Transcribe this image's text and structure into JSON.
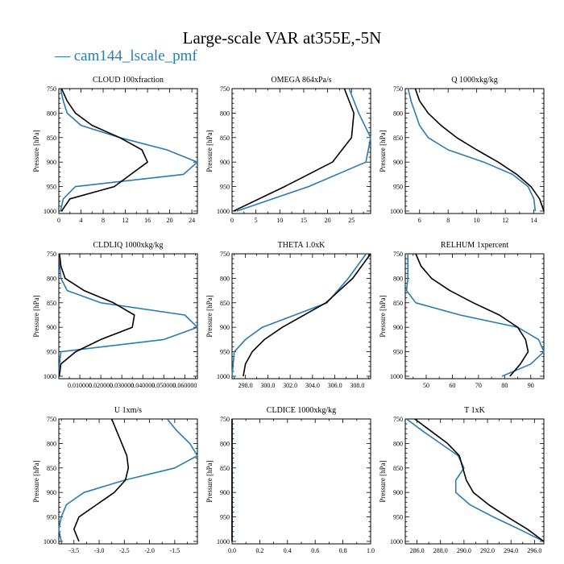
{
  "figure": {
    "title": "Large-scale VAR at355E,-5N",
    "legend_label": "— cam144_lscale_pmf",
    "colors": {
      "series_a": "#2a7bb0",
      "series_b": "#000000"
    }
  },
  "chart_data": [
    {
      "type": "line",
      "title": "CLOUD  100xfraction",
      "ylabel": "Pressure [hPa]",
      "xlim": [
        0,
        25
      ],
      "ylim": [
        750,
        1005
      ],
      "xticks": [
        0,
        4,
        8,
        12,
        16,
        20,
        24
      ],
      "xticklabels": [
        "0",
        "4",
        "8",
        "12",
        "16",
        "20",
        "24"
      ],
      "yticks": [
        750,
        800,
        850,
        900,
        950,
        1000
      ],
      "series": [
        {
          "p": [
            750,
            775,
            800,
            825,
            850,
            875,
            900,
            925,
            950,
            975,
            1000
          ],
          "x": [
            0.3,
            0.8,
            1.5,
            4,
            11,
            19.5,
            25,
            22.5,
            3,
            0.8,
            0.3
          ]
        },
        {
          "p": [
            750,
            775,
            800,
            825,
            850,
            875,
            900,
            925,
            950,
            975,
            1000
          ],
          "x": [
            0.5,
            1.5,
            3,
            6,
            11,
            15,
            16,
            13,
            10,
            2,
            0.5
          ]
        }
      ]
    },
    {
      "type": "line",
      "title": "OMEGA  864xPa/s",
      "ylabel": "Pressure [hPa]",
      "xlim": [
        0,
        29
      ],
      "ylim": [
        750,
        1005
      ],
      "xticks": [
        0,
        5,
        10,
        15,
        20,
        25
      ],
      "xticklabels": [
        "0",
        "5",
        "10",
        "15",
        "20",
        "25"
      ],
      "yticks": [
        750,
        800,
        850,
        900,
        950,
        1000
      ],
      "series": [
        {
          "p": [
            750,
            800,
            850,
            900,
            950,
            1000
          ],
          "x": [
            24.5,
            26.5,
            29,
            28,
            16,
            1
          ]
        },
        {
          "p": [
            750,
            800,
            850,
            900,
            950,
            1000
          ],
          "x": [
            23.5,
            25.5,
            25,
            21,
            11,
            0.3
          ]
        }
      ]
    },
    {
      "type": "line",
      "title": "Q  1000xkg/kg",
      "ylabel": "Pressure [hPa]",
      "xlim": [
        5,
        14.7
      ],
      "ylim": [
        750,
        1005
      ],
      "xticks": [
        6,
        8,
        10,
        12,
        14
      ],
      "xticklabels": [
        "6",
        "8",
        "10",
        "12",
        "14"
      ],
      "yticks": [
        750,
        800,
        850,
        900,
        950,
        1000
      ],
      "series": [
        {
          "p": [
            750,
            775,
            800,
            825,
            850,
            875,
            900,
            925,
            950,
            975,
            1000
          ],
          "x": [
            5.2,
            5.4,
            5.7,
            6,
            6.6,
            8,
            10.5,
            12.5,
            13.6,
            14,
            14.1
          ]
        },
        {
          "p": [
            750,
            775,
            800,
            825,
            850,
            875,
            900,
            925,
            950,
            975,
            1000
          ],
          "x": [
            5.7,
            6,
            6.6,
            7.5,
            8.6,
            10,
            11.5,
            12.8,
            13.8,
            14.4,
            14.7
          ]
        }
      ]
    },
    {
      "type": "line",
      "title": "CLDLIQ  1000xkg/kg",
      "ylabel": "Pressure [hPa]",
      "xlim": [
        0,
        0.066
      ],
      "ylim": [
        750,
        1005
      ],
      "xticks": [
        0.01,
        0.02,
        0.03,
        0.04,
        0.05,
        0.06
      ],
      "xticklabels": [
        "0.010000",
        "0.020000",
        "0.030000",
        "0.040000",
        "0.050000",
        "0.060000"
      ],
      "yticks": [
        750,
        800,
        850,
        900,
        950,
        1000
      ],
      "series": [
        {
          "p": [
            750,
            775,
            800,
            825,
            850,
            875,
            900,
            925,
            950,
            975,
            1000
          ],
          "x": [
            0.0002,
            0.0005,
            0.001,
            0.004,
            0.02,
            0.06,
            0.066,
            0.05,
            0.001,
            0.0003,
            0.0001
          ]
        },
        {
          "p": [
            750,
            775,
            800,
            825,
            850,
            875,
            900,
            925,
            950,
            975,
            1000
          ],
          "x": [
            0.0003,
            0.001,
            0.003,
            0.012,
            0.026,
            0.036,
            0.035,
            0.02,
            0.008,
            0.001,
            0.0002
          ]
        }
      ]
    },
    {
      "type": "line",
      "title": "THETA  1.0xK",
      "ylabel": "Pressure [hPa]",
      "xlim": [
        296.8,
        309.2
      ],
      "ylim": [
        750,
        1005
      ],
      "xticks": [
        298,
        300,
        302,
        304,
        306,
        308
      ],
      "xticklabels": [
        "298.0",
        "300.0",
        "302.0",
        "304.0",
        "306.0",
        "308.0"
      ],
      "yticks": [
        750,
        800,
        850,
        900,
        950,
        1000
      ],
      "series": [
        {
          "p": [
            750,
            800,
            850,
            900,
            925,
            950,
            975,
            1000
          ],
          "x": [
            308.8,
            307.2,
            305.3,
            299.5,
            298,
            297,
            296.9,
            296.8
          ]
        },
        {
          "p": [
            750,
            800,
            850,
            900,
            925,
            950,
            975,
            1000
          ],
          "x": [
            309.2,
            307.6,
            305.2,
            301.3,
            299.7,
            298.6,
            298,
            297.8
          ]
        }
      ]
    },
    {
      "type": "line",
      "title": "RELHUM  1xpercent",
      "ylabel": "Pressure [hPa]",
      "xlim": [
        42,
        95
      ],
      "ylim": [
        750,
        1005
      ],
      "xticks": [
        50,
        60,
        70,
        80,
        90
      ],
      "xticklabels": [
        "50",
        "60",
        "70",
        "80",
        "90"
      ],
      "yticks": [
        750,
        800,
        850,
        900,
        950,
        1000
      ],
      "series": [
        {
          "p": [
            750,
            775,
            800,
            825,
            850,
            875,
            900,
            925,
            950,
            975,
            1000
          ],
          "x": [
            43,
            43,
            43,
            42.5,
            46,
            63,
            85,
            93,
            95,
            90,
            79
          ]
        },
        {
          "p": [
            750,
            775,
            800,
            825,
            850,
            875,
            900,
            925,
            950,
            975,
            1000
          ],
          "x": [
            46,
            48,
            52,
            59,
            68,
            78,
            85,
            88,
            89,
            86,
            82
          ]
        }
      ]
    },
    {
      "type": "line",
      "title": "U  1xm/s",
      "ylabel": "Pressure [hPa]",
      "xlim": [
        -3.8,
        -1.05
      ],
      "ylim": [
        750,
        1005
      ],
      "xticks": [
        -3.5,
        -3.0,
        -2.5,
        -2.0,
        -1.5
      ],
      "xticklabels": [
        "-3.5",
        "-3.0",
        "-2.5",
        "-2.0",
        "-1.5"
      ],
      "yticks": [
        750,
        800,
        850,
        900,
        950,
        1000
      ],
      "series": [
        {
          "p": [
            750,
            775,
            800,
            825,
            850,
            875,
            900,
            925,
            950,
            975,
            1000
          ],
          "x": [
            -1.65,
            -1.45,
            -1.2,
            -1.05,
            -1.5,
            -2.5,
            -3.3,
            -3.65,
            -3.75,
            -3.8,
            -3.75
          ]
        },
        {
          "p": [
            750,
            775,
            800,
            825,
            850,
            875,
            900,
            925,
            950,
            975,
            1000
          ],
          "x": [
            -2.75,
            -2.65,
            -2.55,
            -2.45,
            -2.42,
            -2.48,
            -2.7,
            -3.05,
            -3.4,
            -3.5,
            -3.4
          ]
        }
      ]
    },
    {
      "type": "line",
      "title": "CLDICE  1000xkg/kg",
      "ylabel": "Pressure [hPa]",
      "xlim": [
        0,
        1
      ],
      "ylim": [
        750,
        1005
      ],
      "xticks": [
        0,
        0.2,
        0.4,
        0.6,
        0.8,
        1.0
      ],
      "xticklabels": [
        "0.0",
        "0.2",
        "0.4",
        "0.6",
        "0.8",
        "1.0"
      ],
      "yticks": [
        750,
        800,
        850,
        900,
        950,
        1000
      ],
      "series": [
        {
          "p": [
            750,
            1000
          ],
          "x": [
            0,
            0
          ]
        },
        {
          "p": [
            750,
            1000
          ],
          "x": [
            0,
            0
          ]
        }
      ]
    },
    {
      "type": "line",
      "title": "T  1xK",
      "ylabel": "Pressure [hPa]",
      "xlim": [
        285,
        296.8
      ],
      "ylim": [
        750,
        1005
      ],
      "xticks": [
        286,
        288,
        290,
        292,
        294,
        296
      ],
      "xticklabels": [
        "286.0",
        "288.0",
        "290.0",
        "292.0",
        "294.0",
        "296.0"
      ],
      "yticks": [
        750,
        800,
        850,
        900,
        950,
        1000
      ],
      "series": [
        {
          "p": [
            750,
            775,
            800,
            825,
            850,
            875,
            900,
            925,
            950,
            975,
            1000
          ],
          "x": [
            285.1,
            286.5,
            288,
            289.5,
            290,
            289.3,
            289.3,
            290.5,
            292.5,
            294.7,
            296.8
          ]
        },
        {
          "p": [
            750,
            775,
            800,
            825,
            850,
            875,
            900,
            925,
            950,
            975,
            1000
          ],
          "x": [
            285.8,
            287.2,
            288.6,
            289.6,
            289.9,
            290.2,
            290.8,
            292.1,
            293.7,
            295.4,
            296.8
          ]
        }
      ]
    }
  ]
}
